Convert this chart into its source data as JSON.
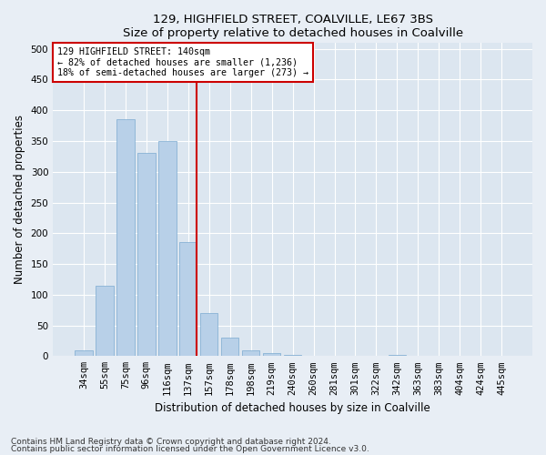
{
  "title1": "129, HIGHFIELD STREET, COALVILLE, LE67 3BS",
  "title2": "Size of property relative to detached houses in Coalville",
  "xlabel": "Distribution of detached houses by size in Coalville",
  "ylabel": "Number of detached properties",
  "categories": [
    "34sqm",
    "55sqm",
    "75sqm",
    "96sqm",
    "116sqm",
    "137sqm",
    "157sqm",
    "178sqm",
    "198sqm",
    "219sqm",
    "240sqm",
    "260sqm",
    "281sqm",
    "301sqm",
    "322sqm",
    "342sqm",
    "363sqm",
    "383sqm",
    "404sqm",
    "424sqm",
    "445sqm"
  ],
  "values": [
    10,
    115,
    385,
    330,
    350,
    185,
    70,
    30,
    10,
    5,
    2,
    1,
    1,
    0,
    0,
    2,
    0,
    0,
    1,
    0,
    1
  ],
  "bar_color": "#b8d0e8",
  "bar_edge_color": "#7aaad0",
  "vline_x_index": 5,
  "vline_color": "#cc0000",
  "annotation_text": "129 HIGHFIELD STREET: 140sqm\n← 82% of detached houses are smaller (1,236)\n18% of semi-detached houses are larger (273) →",
  "annotation_box_color": "#ffffff",
  "annotation_box_edge_color": "#cc0000",
  "ylim": [
    0,
    510
  ],
  "yticks": [
    0,
    50,
    100,
    150,
    200,
    250,
    300,
    350,
    400,
    450,
    500
  ],
  "footnote1": "Contains HM Land Registry data © Crown copyright and database right 2024.",
  "footnote2": "Contains public sector information licensed under the Open Government Licence v3.0.",
  "bg_color": "#e8eef5",
  "plot_bg_color": "#dce6f0",
  "title_fontsize": 9.5,
  "axis_label_fontsize": 8.5,
  "tick_fontsize": 7.5,
  "footnote_fontsize": 6.5
}
